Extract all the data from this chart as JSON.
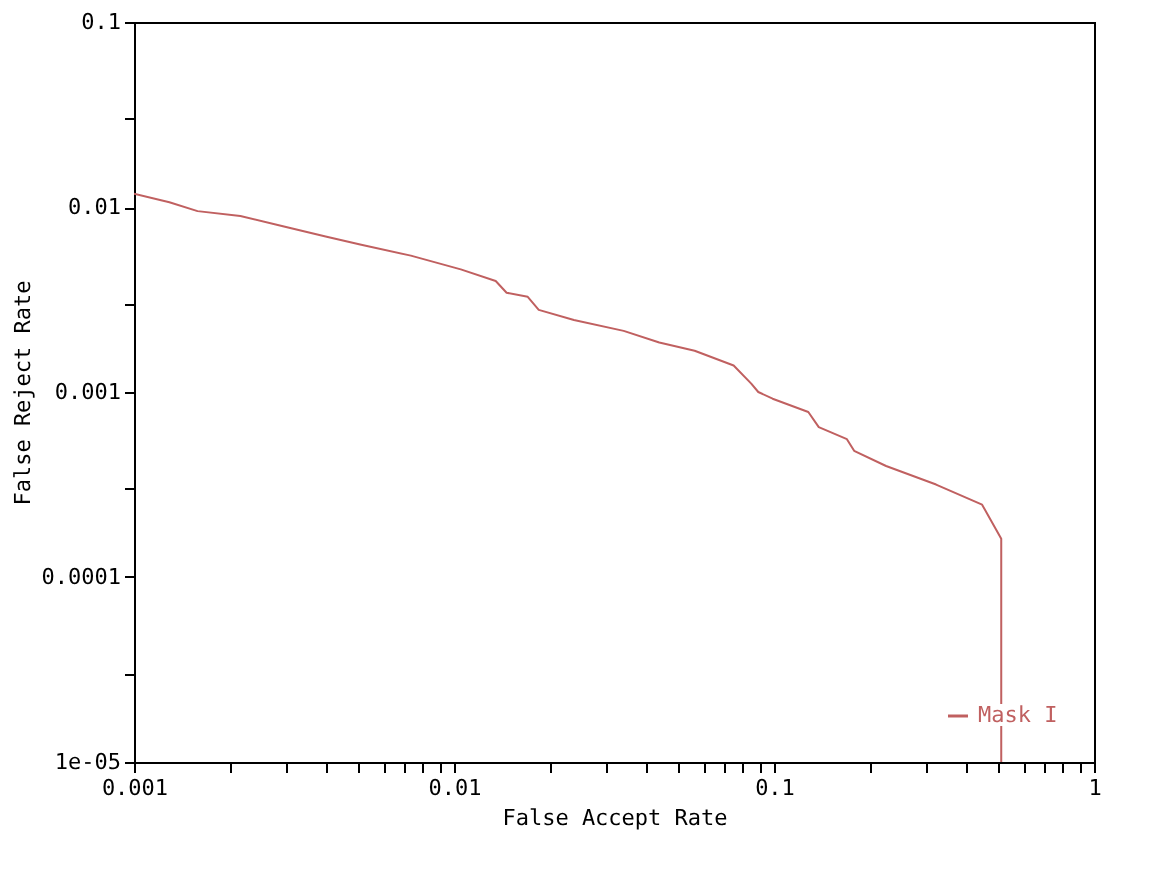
{
  "chart_data": {
    "type": "line",
    "xlabel": "False Accept Rate",
    "ylabel": "False Reject Rate",
    "log": "xy",
    "grid": false,
    "legend": "bottom right",
    "marker": "none",
    "line_style": "solid",
    "xlim": [
      0.001,
      1
    ],
    "ylim": [
      1e-05,
      0.1
    ],
    "xticks": [
      0.001,
      {
        "value": 0.002,
        "label": null
      },
      {
        "value": 0.003,
        "label": null
      },
      {
        "value": 0.004,
        "label": null
      },
      {
        "value": 0.005,
        "label": null
      },
      {
        "value": 0.006,
        "label": null
      },
      {
        "value": 0.007,
        "label": null
      },
      {
        "value": 0.008,
        "label": null
      },
      {
        "value": 0.009,
        "label": null
      },
      0.01,
      {
        "value": 0.02,
        "label": null
      },
      {
        "value": 0.03,
        "label": null
      },
      {
        "value": 0.04,
        "label": null
      },
      {
        "value": 0.05,
        "label": null
      },
      {
        "value": 0.06,
        "label": null
      },
      {
        "value": 0.07,
        "label": null
      },
      {
        "value": 0.08,
        "label": null
      },
      {
        "value": 0.09,
        "label": null
      },
      0.1,
      {
        "value": 0.2,
        "label": null
      },
      {
        "value": 0.3,
        "label": null
      },
      {
        "value": 0.4,
        "label": null
      },
      {
        "value": 0.5,
        "label": null
      },
      {
        "value": 0.6,
        "label": null
      },
      {
        "value": 0.7,
        "label": null
      },
      {
        "value": 0.8,
        "label": null
      },
      {
        "value": 0.9,
        "label": null
      },
      1
    ],
    "yticks": [
      {
        "value": 1e-05,
        "label": "1e-05"
      },
      {
        "value": 3e-05,
        "label": null
      },
      0.0001,
      {
        "value": 0.0003,
        "label": null
      },
      0.001,
      {
        "value": 0.003,
        "label": null
      },
      0.01,
      {
        "value": 0.03,
        "label": null
      },
      0.1
    ],
    "series": [
      {
        "name": "Mask I",
        "color": "#c06060",
        "x": [
          0.001,
          0.00129,
          0.00158,
          0.00215,
          0.00292,
          0.00397,
          0.00513,
          0.00733,
          0.0105,
          0.0135,
          0.0146,
          0.017,
          0.0184,
          0.0237,
          0.0339,
          0.0438,
          0.0565,
          0.0748,
          0.0849,
          0.0893,
          0.099,
          0.128,
          0.138,
          0.169,
          0.178,
          0.224,
          0.321,
          0.447,
          0.513,
          0.513
        ],
        "values": [
          0.0118,
          0.0106,
          0.0095,
          0.00895,
          0.00787,
          0.00693,
          0.00625,
          0.00546,
          0.0046,
          0.00398,
          0.00344,
          0.00327,
          0.00278,
          0.00245,
          0.00214,
          0.00185,
          0.00167,
          0.00139,
          0.00111,
          0.001,
          0.00092,
          0.00078,
          0.000646,
          0.000556,
          0.000481,
          0.000398,
          0.000316,
          0.000246,
          0.000161,
          1e-05
        ]
      }
    ]
  }
}
